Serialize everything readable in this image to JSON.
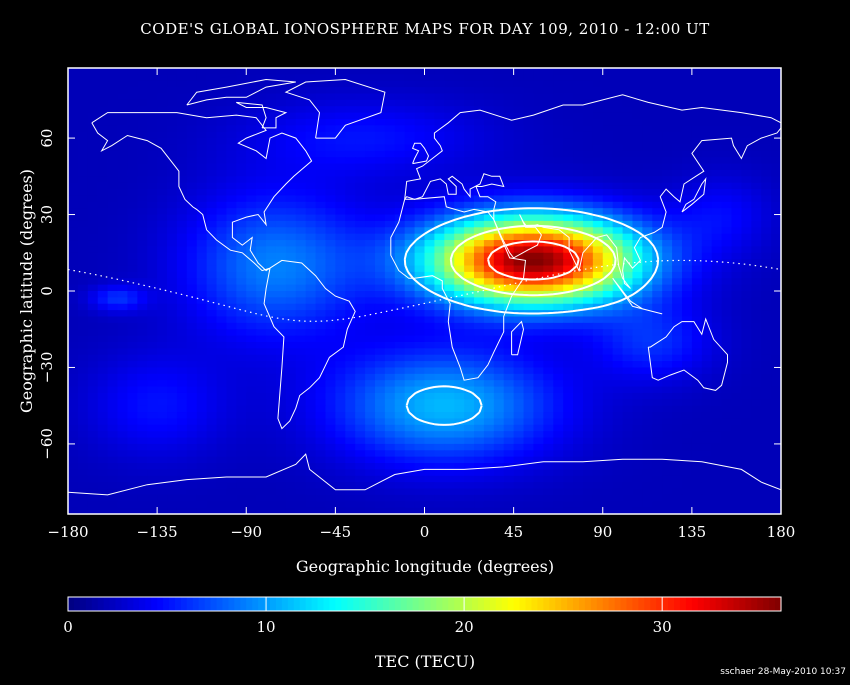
{
  "chart_data": {
    "type": "heatmap",
    "title": "CODE'S GLOBAL IONOSPHERE MAPS FOR DAY 109, 2010 - 12:00 UT",
    "xlabel": "Geographic longitude (degrees)",
    "ylabel": "Geographic latitude (degrees)",
    "xlim": [
      -180,
      180
    ],
    "ylim": [
      -87.5,
      87.5
    ],
    "x_ticks": [
      -180,
      -135,
      -90,
      -45,
      0,
      45,
      90,
      135,
      180
    ],
    "y_ticks": [
      60,
      30,
      0,
      -30,
      -60
    ],
    "grid": false,
    "colorbar": {
      "label": "TEC (TECU)",
      "range": [
        0,
        36
      ],
      "ticks": [
        0,
        10,
        20,
        30
      ],
      "colormap": "jet"
    },
    "contour_levels_tecu": [
      10,
      20,
      30
    ],
    "peak": {
      "lon": 55,
      "lat": 12,
      "tec": 36
    },
    "credit": "sschaer 28-May-2010 10:37"
  },
  "colors": {
    "background": "#000000",
    "foreground": "#ffffff",
    "jet_low": "#00008f",
    "jet_high": "#ff0000"
  }
}
